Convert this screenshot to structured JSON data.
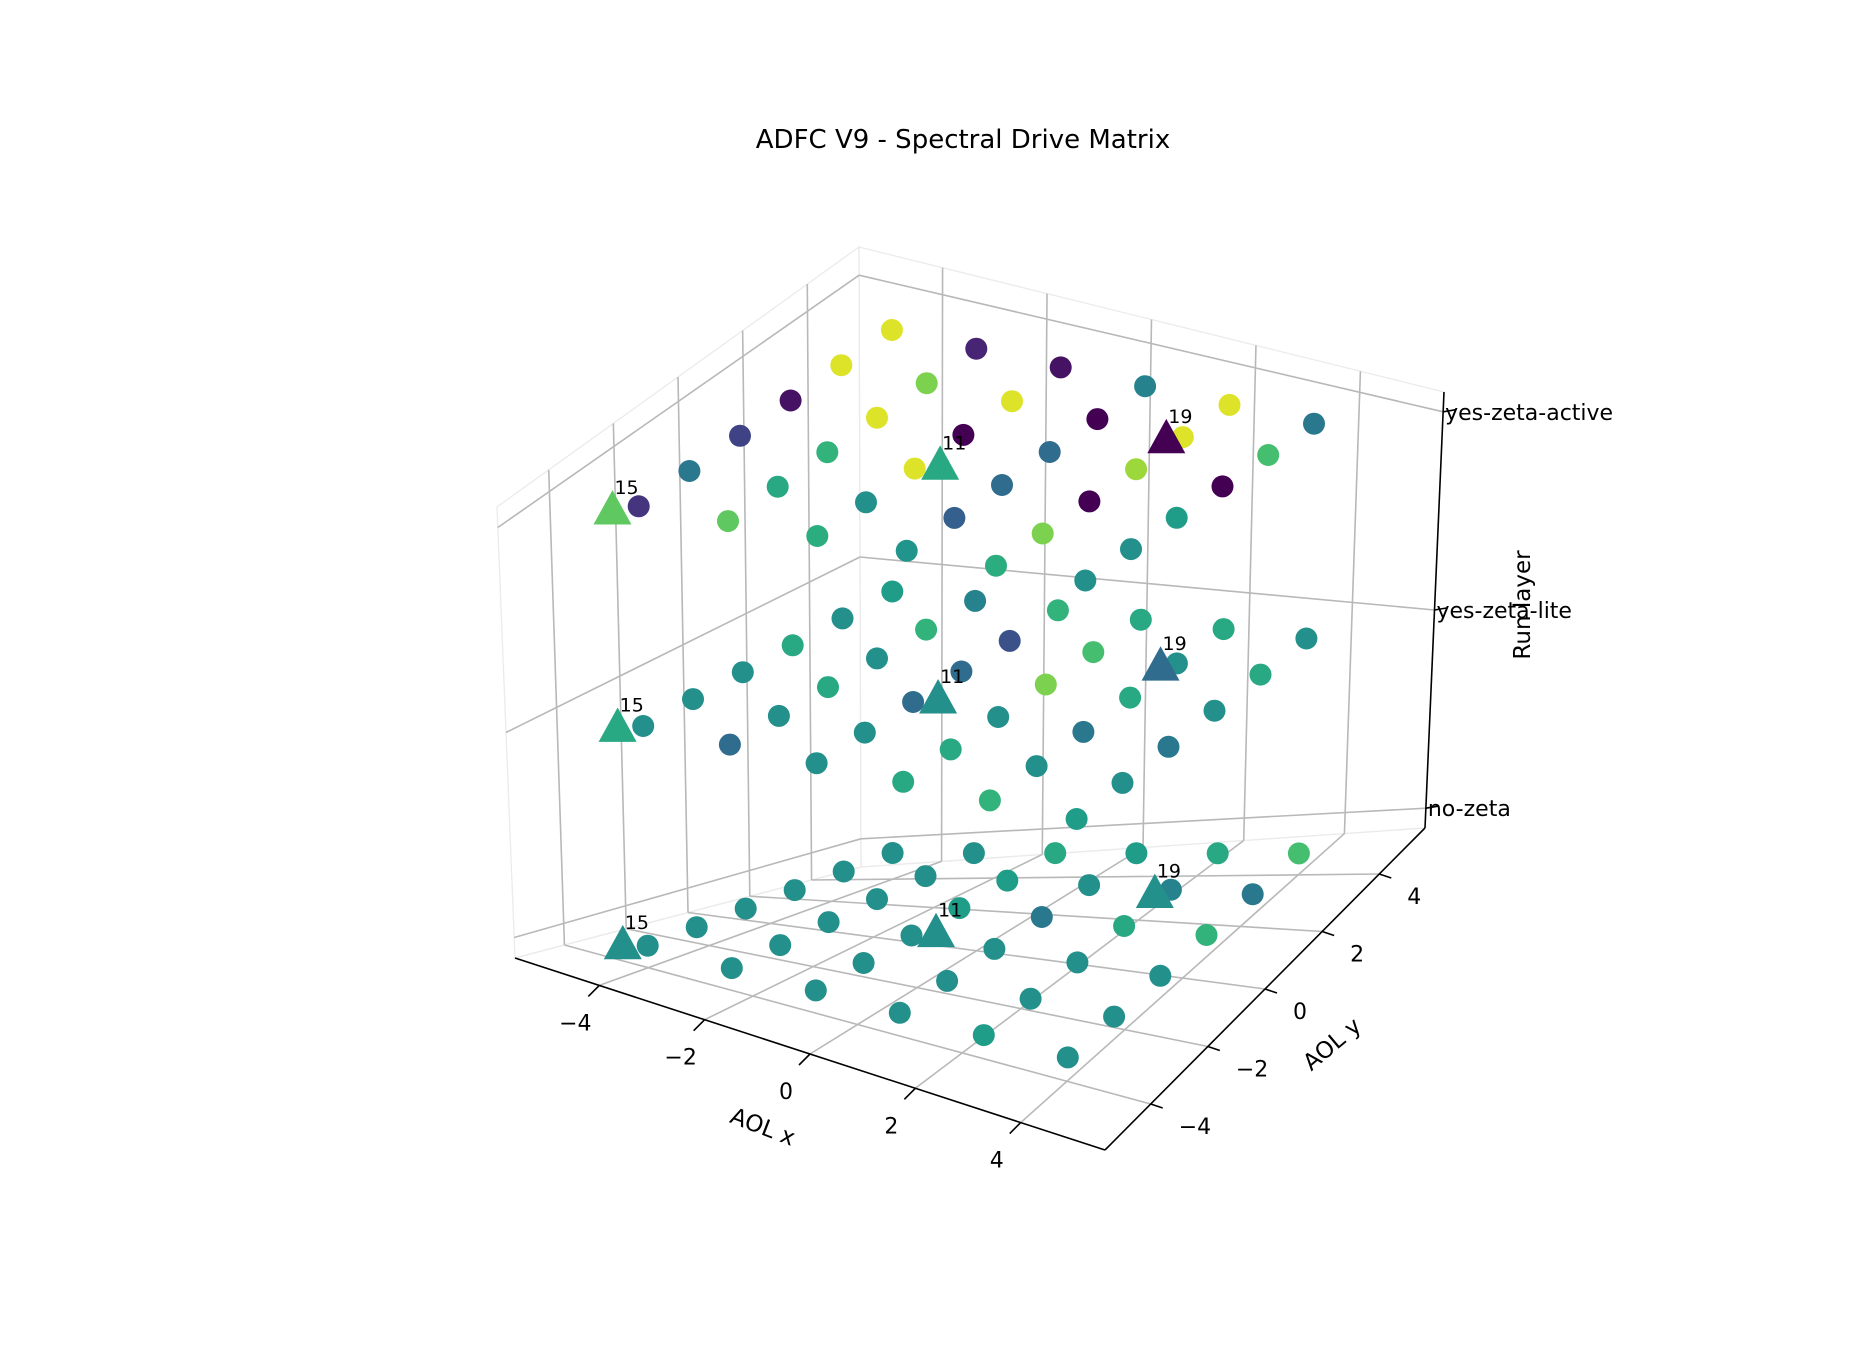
{
  "chart_data": {
    "type": "scatter",
    "title": "ADFC V9 - Spectral Drive Matrix",
    "xlabel": "AOL x",
    "ylabel": "AOL y",
    "zlabel": "Run layer",
    "x_ticks": [
      "−4",
      "−2",
      "0",
      "2",
      "4"
    ],
    "y_ticks": [
      "−4",
      "−2",
      "0",
      "2",
      "4"
    ],
    "z_ticks": [
      "no-zeta",
      "yes-zeta-lite",
      "yes-zeta-active"
    ],
    "xlim": [
      -5.6,
      5.6
    ],
    "ylim": [
      -5.6,
      5.6
    ],
    "grid": true,
    "colormap": "viridis",
    "marker_note": "circles = grid points (6x6 per layer); triangles = labeled points",
    "layers": [
      {
        "name": "no-zeta",
        "grid_x": [
          -4,
          -2.4,
          -0.8,
          0.8,
          2.4,
          4
        ],
        "grid_y": [
          -4,
          -2.4,
          -0.8,
          0.8,
          2.4,
          4
        ],
        "color_index": [
          [
            0.5,
            0.5,
            0.5,
            0.5,
            0.55,
            0.5
          ],
          [
            0.5,
            0.5,
            0.5,
            0.5,
            0.5,
            0.5
          ],
          [
            0.5,
            0.5,
            0.5,
            0.5,
            0.5,
            0.5
          ],
          [
            0.5,
            0.5,
            0.55,
            0.4,
            0.6,
            0.65
          ],
          [
            0.5,
            0.5,
            0.55,
            0.5,
            0.45,
            0.4
          ],
          [
            0.5,
            0.5,
            0.6,
            0.55,
            0.6,
            0.7
          ]
        ]
      },
      {
        "name": "yes-zeta-lite",
        "grid_x": [
          -4,
          -2.4,
          -0.8,
          0.8,
          2.4,
          4
        ],
        "grid_y": [
          -4,
          -2.4,
          -0.8,
          0.8,
          2.4,
          4
        ],
        "color_index": [
          [
            0.5,
            0.35,
            0.5,
            0.6,
            0.65,
            0.55
          ],
          [
            0.5,
            0.5,
            0.5,
            0.6,
            0.5,
            0.5
          ],
          [
            0.5,
            0.6,
            0.35,
            0.5,
            0.4,
            0.4
          ],
          [
            0.6,
            0.5,
            0.35,
            0.8,
            0.6,
            0.5
          ],
          [
            0.5,
            0.65,
            0.25,
            0.7,
            0.5,
            0.6
          ],
          [
            0.55,
            0.45,
            0.65,
            0.6,
            0.6,
            0.5
          ]
        ]
      },
      {
        "name": "yes-zeta-active",
        "grid_x": [
          -4,
          -2.4,
          -0.8,
          0.8,
          2.4,
          4
        ],
        "grid_y": [
          -4,
          -2.4,
          -0.8,
          0.8,
          2.4,
          4
        ],
        "color_index": [
          [
            0.15,
            0.75,
            0.62,
            0.52,
            0.62,
            0.5
          ],
          [
            0.4,
            0.6,
            0.5,
            0.3,
            0.8,
            0.5
          ],
          [
            0.2,
            0.65,
            0.95,
            0.35,
            0.0,
            0.55
          ],
          [
            0.05,
            0.95,
            0.0,
            0.35,
            0.85,
            0.0
          ],
          [
            0.95,
            0.8,
            0.95,
            0.0,
            0.95,
            0.7
          ],
          [
            0.95,
            0.1,
            0.05,
            0.45,
            0.95,
            0.4
          ]
        ]
      }
    ],
    "labeled_points": [
      {
        "label": "15",
        "x": -4.3,
        "y": -4.3,
        "layer": "no-zeta",
        "color_index": 0.5
      },
      {
        "label": "11",
        "x": -0.5,
        "y": -0.5,
        "layer": "no-zeta",
        "color_index": 0.5
      },
      {
        "label": "19",
        "x": 2.2,
        "y": 2.2,
        "layer": "no-zeta",
        "color_index": 0.5
      },
      {
        "label": "15",
        "x": -4.3,
        "y": -4.3,
        "layer": "yes-zeta-lite",
        "color_index": 0.6
      },
      {
        "label": "11",
        "x": -0.5,
        "y": -0.5,
        "layer": "yes-zeta-lite",
        "color_index": 0.5
      },
      {
        "label": "19",
        "x": 2.2,
        "y": 2.2,
        "layer": "yes-zeta-lite",
        "color_index": 0.35
      },
      {
        "label": "15",
        "x": -4.3,
        "y": -4.3,
        "layer": "yes-zeta-active",
        "color_index": 0.75
      },
      {
        "label": "11",
        "x": -0.5,
        "y": -0.5,
        "layer": "yes-zeta-active",
        "color_index": 0.6
      },
      {
        "label": "19",
        "x": 2.2,
        "y": 2.2,
        "layer": "yes-zeta-active",
        "color_index": 0.0
      }
    ]
  }
}
